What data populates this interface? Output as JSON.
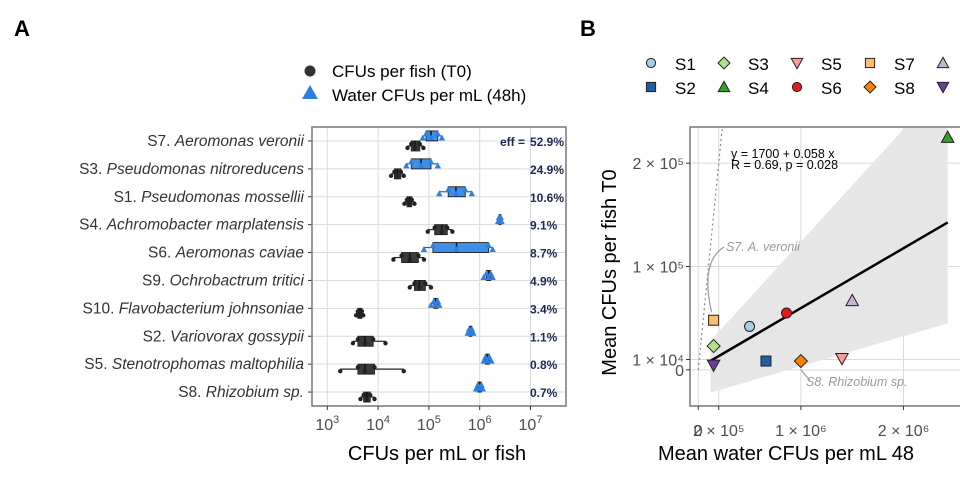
{
  "panels": {
    "a_letter": "A",
    "b_letter": "B"
  },
  "chart_data": [
    {
      "type": "box",
      "panel": "A",
      "xlabel": "CFUs per mL or fish",
      "x_scale": "log10",
      "xlim": [
        500,
        50000000
      ],
      "x_ticks": [
        {
          "v": 1000,
          "base": "10",
          "exp": "3"
        },
        {
          "v": 10000,
          "base": "10",
          "exp": "4"
        },
        {
          "v": 100000,
          "base": "10",
          "exp": "5"
        },
        {
          "v": 1000000,
          "base": "10",
          "exp": "6"
        },
        {
          "v": 10000000,
          "base": "10",
          "exp": "7"
        }
      ],
      "legend": [
        {
          "label": "CFUs per fish (T0)",
          "shape": "circle",
          "color": "#333333"
        },
        {
          "label": "Water CFUs per mL (48h)",
          "shape": "triangle",
          "color": "#2f7fe0"
        }
      ],
      "eff_prefix": "eff =",
      "categories": [
        {
          "code": "S7.",
          "species": "Aeromonas veronii",
          "eff": "52.9%",
          "fish": {
            "min": 38000,
            "q1": 45000,
            "median": 53000,
            "q3": 66000,
            "max": 78000
          },
          "water": {
            "min": 76000,
            "q1": 88000,
            "median": 110000,
            "q3": 150000,
            "max": 180000
          }
        },
        {
          "code": "S3.",
          "species": "Pseudomonas nitroreducens",
          "eff": "24.9%",
          "fish": {
            "min": 18000,
            "q1": 21000,
            "median": 24000,
            "q3": 28000,
            "max": 32000
          },
          "water": {
            "min": 36000,
            "q1": 45000,
            "median": 70000,
            "q3": 110000,
            "max": 150000
          }
        },
        {
          "code": "S1.",
          "species": "Pseudomonas mossellii",
          "eff": "10.6%",
          "fish": {
            "min": 33000,
            "q1": 37000,
            "median": 41000,
            "q3": 46000,
            "max": 52000
          },
          "water": {
            "min": 160000,
            "q1": 240000,
            "median": 340000,
            "q3": 520000,
            "max": 700000
          }
        },
        {
          "code": "S4.",
          "species": "Achromobacter marplatensis",
          "eff": "9.1%",
          "fish": {
            "min": 95000,
            "q1": 130000,
            "median": 180000,
            "q3": 230000,
            "max": 290000
          },
          "water": {
            "min": 2300000,
            "q1": 2400000,
            "median": 2500000,
            "q3": 2600000,
            "max": 2700000
          }
        },
        {
          "code": "S6.",
          "species": "Aeromonas caviae",
          "eff": "8.7%",
          "fish": {
            "min": 20000,
            "q1": 29000,
            "median": 42000,
            "q3": 62000,
            "max": 80000
          },
          "water": {
            "min": 80000,
            "q1": 120000,
            "median": 350000,
            "q3": 1500000,
            "max": 1800000
          }
        },
        {
          "code": "S9.",
          "species": "Ochrobactrum tritici",
          "eff": "4.9%",
          "fish": {
            "min": 42000,
            "q1": 52000,
            "median": 65000,
            "q3": 85000,
            "max": 110000
          },
          "water": {
            "min": 1200000,
            "q1": 1350000,
            "median": 1500000,
            "q3": 1650000,
            "max": 1800000
          }
        },
        {
          "code": "S10.",
          "species": "Flavobacterium johnsoniae",
          "eff": "3.4%",
          "fish": {
            "min": 3700,
            "q1": 4000,
            "median": 4400,
            "q3": 4800,
            "max": 5100
          },
          "water": {
            "min": 110000,
            "q1": 125000,
            "median": 135000,
            "q3": 150000,
            "max": 160000
          }
        },
        {
          "code": "S2.",
          "species": "Variovorax gossypii",
          "eff": "1.1%",
          "fish": {
            "min": 3200,
            "q1": 4000,
            "median": 5500,
            "q3": 8000,
            "max": 14000
          },
          "water": {
            "min": 580000,
            "q1": 620000,
            "median": 660000,
            "q3": 700000,
            "max": 750000
          }
        },
        {
          "code": "S5.",
          "species": "Stenotrophomas maltophilia",
          "eff": "0.8%",
          "fish": {
            "min": 1800,
            "q1": 4000,
            "median": 5500,
            "q3": 8500,
            "max": 32000
          },
          "water": {
            "min": 1200000,
            "q1": 1300000,
            "median": 1400000,
            "q3": 1550000,
            "max": 1700000
          }
        },
        {
          "code": "S8.",
          "species": "Rhizobium sp.",
          "eff": "0.7%",
          "fish": {
            "min": 4500,
            "q1": 5200,
            "median": 6000,
            "q3": 7000,
            "max": 8500
          },
          "water": {
            "min": 850000,
            "q1": 920000,
            "median": 1000000,
            "q3": 1080000,
            "max": 1150000
          }
        }
      ]
    },
    {
      "type": "scatter",
      "panel": "B",
      "xlabel": "Mean water CFUs per mL 48",
      "ylabel": "Mean CFUs per fish T0",
      "xlim": [
        -80000,
        2550000
      ],
      "ylim": [
        -35000,
        235000
      ],
      "x_ticks": [
        {
          "v": 0,
          "text": "0"
        },
        {
          "v": 200000,
          "text": "2 × 10⁵"
        },
        {
          "v": 1000000,
          "text": "1 × 10⁶"
        },
        {
          "v": 2000000,
          "text": "2 × 10⁶"
        }
      ],
      "y_ticks": [
        {
          "v": 0,
          "text": "0"
        },
        {
          "v": 10000,
          "text": "1 × 10⁴"
        },
        {
          "v": 100000,
          "text": "1 × 10⁵"
        },
        {
          "v": 200000,
          "text": "2 × 10⁵"
        }
      ],
      "equation_line1": "y = 1700 + 0.058 x",
      "equation_line2": "R = 0.69, p = 0.028",
      "fit": {
        "intercept": 1700,
        "slope": 0.058,
        "ci_x": [
          120000,
          2430000
        ],
        "ci_lower": [
          -22000,
          45000
        ],
        "ci_upper": [
          28000,
          280000
        ],
        "identity_line": true
      },
      "annotations": [
        {
          "text": "S7. A. veronii",
          "target": "S7"
        },
        {
          "text": "S8. Rhizobium sp.",
          "target": "S8"
        }
      ],
      "legend": [
        {
          "label": "S1",
          "shape": "circle",
          "color": "#a6cee3"
        },
        {
          "label": "S2",
          "shape": "square",
          "color": "#1f5fa6"
        },
        {
          "label": "S3",
          "shape": "diamond",
          "color": "#b2df8a"
        },
        {
          "label": "S4",
          "shape": "triangle-up",
          "color": "#33a02c"
        },
        {
          "label": "S5",
          "shape": "triangle-down",
          "color": "#fb9a99"
        },
        {
          "label": "S6",
          "shape": "circle",
          "color": "#e31a1c"
        },
        {
          "label": "S7",
          "shape": "square",
          "color": "#fdbf6f"
        },
        {
          "label": "S8",
          "shape": "diamond",
          "color": "#ff7f00"
        },
        {
          "label": "",
          "shape": "triangle-up",
          "color": "#cab2d6"
        },
        {
          "label": "",
          "shape": "triangle-down",
          "color": "#6a3d9a"
        }
      ],
      "points": [
        {
          "id": "S1",
          "x": 500000,
          "y": 42000
        },
        {
          "id": "S2",
          "x": 660000,
          "y": 8500
        },
        {
          "id": "S3",
          "x": 150000,
          "y": 23000
        },
        {
          "id": "S4",
          "x": 2430000,
          "y": 225000
        },
        {
          "id": "S5",
          "x": 1400000,
          "y": 11000
        },
        {
          "id": "S6",
          "x": 860000,
          "y": 55000
        },
        {
          "id": "S7",
          "x": 150000,
          "y": 48000
        },
        {
          "id": "S8",
          "x": 1000000,
          "y": 8500
        },
        {
          "id": "S9",
          "x": 1500000,
          "y": 67000
        },
        {
          "id": "S10",
          "x": 150000,
          "y": 4500
        }
      ]
    }
  ]
}
